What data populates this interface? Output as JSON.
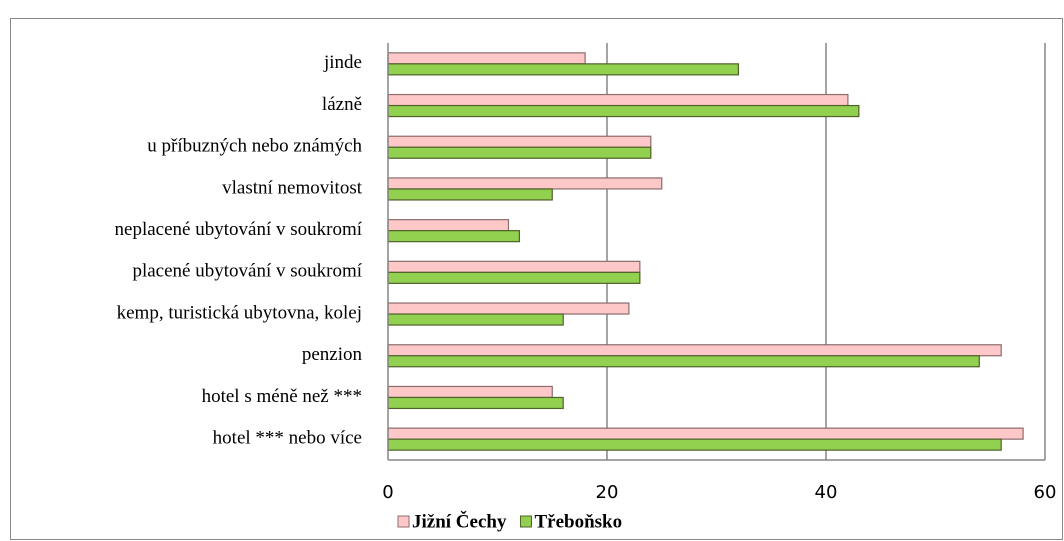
{
  "chart_data": {
    "type": "bar",
    "orientation": "horizontal",
    "categories": [
      "jinde",
      "lázně",
      "u příbuzných nebo známých",
      "vlastní nemovitost",
      "neplacené ubytování v soukromí",
      "placené ubytování v soukromí ",
      "kemp, turistická ubytovna, kolej",
      "penzion",
      "hotel s méně než ***",
      "hotel *** nebo více"
    ],
    "series": [
      {
        "name": "Jižní Čechy",
        "color": "#ffc8c8",
        "values": [
          18,
          42,
          24,
          25,
          11,
          23,
          22,
          56,
          15,
          58
        ]
      },
      {
        "name": "Třeboňsko",
        "color": "#92d050",
        "values": [
          32,
          43,
          24,
          15,
          12,
          23,
          16,
          54,
          16,
          56
        ]
      }
    ],
    "xlim": [
      0,
      60
    ],
    "xticks": [
      0,
      20,
      40,
      60
    ],
    "grid": true,
    "legend": "bottom"
  }
}
